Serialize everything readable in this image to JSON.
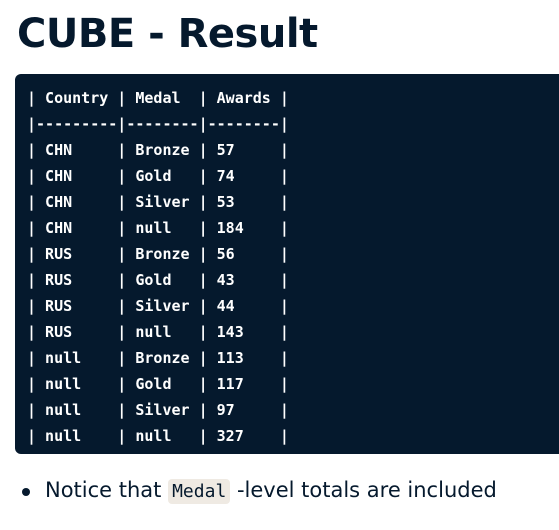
{
  "title": "CUBE - Result",
  "code_block": {
    "lines": [
      "| Country | Medal  | Awards |",
      "|---------|--------|--------|",
      "| CHN     | Bronze | 57     |",
      "| CHN     | Gold   | 74     |",
      "| CHN     | Silver | 53     |",
      "| CHN     | null   | 184    |",
      "| RUS     | Bronze | 56     |",
      "| RUS     | Gold   | 43     |",
      "| RUS     | Silver | 44     |",
      "| RUS     | null   | 143    |",
      "| null    | Bronze | 113    |",
      "| null    | Gold   | 117    |",
      "| null    | Silver | 97     |",
      "| null    | null   | 327    |"
    ]
  },
  "bullets": [
    {
      "before": "Notice that ",
      "code": "Medal",
      "after": " -level totals are included"
    }
  ],
  "colors": {
    "text": "#05192d",
    "code_background": "#05192d",
    "inline_code_background": "#efeae3"
  }
}
